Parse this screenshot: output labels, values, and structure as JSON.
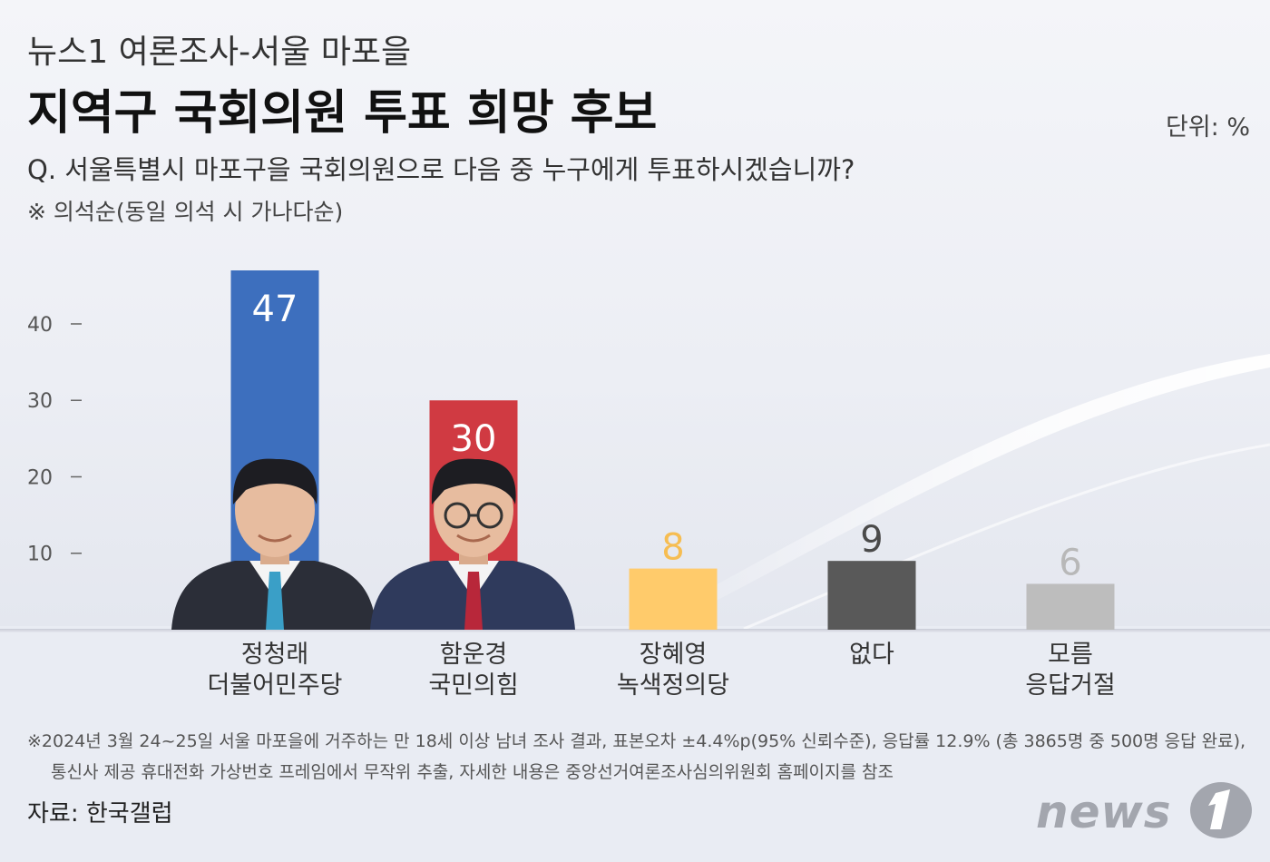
{
  "header": {
    "subtitle": "뉴스1 여론조사-서울 마포을",
    "title": "지역구 국회의원 투표 희망 후보",
    "unit": "단위: %",
    "question": "Q. 서울특별시 마포구을 국회의원으로 다음 중 누구에게 투표하시겠습니까?",
    "note": "※ 의석순(동일 의석 시 가나다순)"
  },
  "chart_data": {
    "type": "bar",
    "categories": [
      [
        "정청래",
        "더불어민주당"
      ],
      [
        "함운경",
        "국민의힘"
      ],
      [
        "장혜영",
        "녹색정의당"
      ],
      [
        "없다"
      ],
      [
        "모름",
        "응답거절"
      ]
    ],
    "values": [
      47,
      30,
      8,
      9,
      6
    ],
    "value_labels": [
      "47",
      "30",
      "8",
      "9",
      "6"
    ],
    "colors": [
      "#3d6fbe",
      "#d03a42",
      "#ffcb6b",
      "#595959",
      "#bdbdbd"
    ],
    "value_label_colors": [
      "#ffffff",
      "#ffffff",
      "#f6bd52",
      "#4a4a4a",
      "#b8b8b8"
    ],
    "value_labels_inside": [
      true,
      true,
      false,
      false,
      false
    ],
    "photos": [
      "avatar",
      "avatar",
      null,
      null,
      null
    ],
    "y_ticks": [
      10,
      20,
      30,
      40
    ],
    "y_tick_labels": [
      "10",
      "20",
      "30",
      "40"
    ],
    "ylim": [
      0,
      47
    ],
    "grid": false,
    "xlabel": "",
    "ylabel": ""
  },
  "footer": {
    "footnote_line1": "※2024년 3월 24~25일 서울 마포을에 거주하는 만 18세 이상 남녀 조사 결과, 표본오차 ±4.4%p(95% 신뢰수준), 응답률 12.9% (총 3865명 중 500명 응답 완료),",
    "footnote_line2": "통신사 제공 휴대전화 가상번호 프레임에서 무작위 추출, 자세한 내용은 중앙선거여론조사심의위원회 홈페이지를 참조",
    "source": "자료: 한국갤럽",
    "logo_text": "news"
  }
}
